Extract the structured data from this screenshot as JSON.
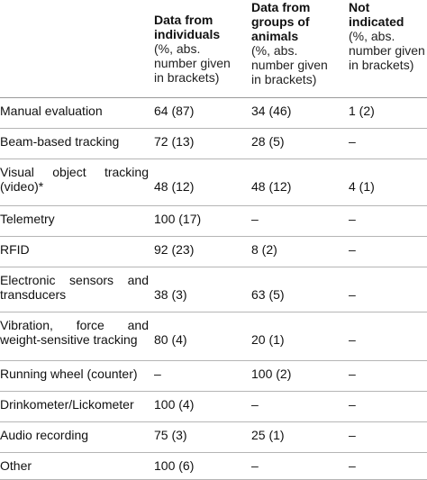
{
  "header": {
    "col2": {
      "bold": [
        "Data from",
        "individuals"
      ],
      "normal": [
        "(%, abs.",
        "number given",
        "in brackets)"
      ]
    },
    "col3": {
      "bold": [
        "Data from",
        "groups of",
        "animals"
      ],
      "normal": [
        "(%, abs.",
        "number given",
        "in brackets)"
      ]
    },
    "col4": {
      "bold": [
        "Not",
        "indicated"
      ],
      "normal": [
        "(%, abs.",
        "number given",
        "in brackets)"
      ]
    }
  },
  "rows": [
    {
      "label": [
        "Manual evaluation"
      ],
      "individuals": "64 (87)",
      "groups": "34 (46)",
      "not_indicated": "1 (2)"
    },
    {
      "label": [
        "Beam-based tracking"
      ],
      "individuals": "72 (13)",
      "groups": "28 (5)",
      "not_indicated": "–"
    },
    {
      "label": [
        "Visual object tracking",
        "(video)*"
      ],
      "individuals": "48 (12)",
      "groups": "48 (12)",
      "not_indicated": "4 (1)"
    },
    {
      "label": [
        "Telemetry"
      ],
      "individuals": "100 (17)",
      "groups": "–",
      "not_indicated": "–"
    },
    {
      "label": [
        "RFID"
      ],
      "individuals": "92 (23)",
      "groups": "8 (2)",
      "not_indicated": "–"
    },
    {
      "label": [
        "Electronic sensors and",
        "transducers"
      ],
      "individuals": "38 (3)",
      "groups": "63 (5)",
      "not_indicated": "–"
    },
    {
      "label": [
        "Vibration, force and",
        "weight-sensitive tracking"
      ],
      "individuals": "80 (4)",
      "groups": "20 (1)",
      "not_indicated": "–"
    },
    {
      "label": [
        "Running wheel (counter)"
      ],
      "individuals": "–",
      "groups": "100 (2)",
      "not_indicated": "–"
    },
    {
      "label": [
        "Drinkometer/Lickometer"
      ],
      "individuals": "100 (4)",
      "groups": "–",
      "not_indicated": "–"
    },
    {
      "label": [
        "Audio recording"
      ],
      "individuals": "75 (3)",
      "groups": "25 (1)",
      "not_indicated": "–"
    },
    {
      "label": [
        "Other"
      ],
      "individuals": "100 (6)",
      "groups": "–",
      "not_indicated": "–"
    }
  ]
}
